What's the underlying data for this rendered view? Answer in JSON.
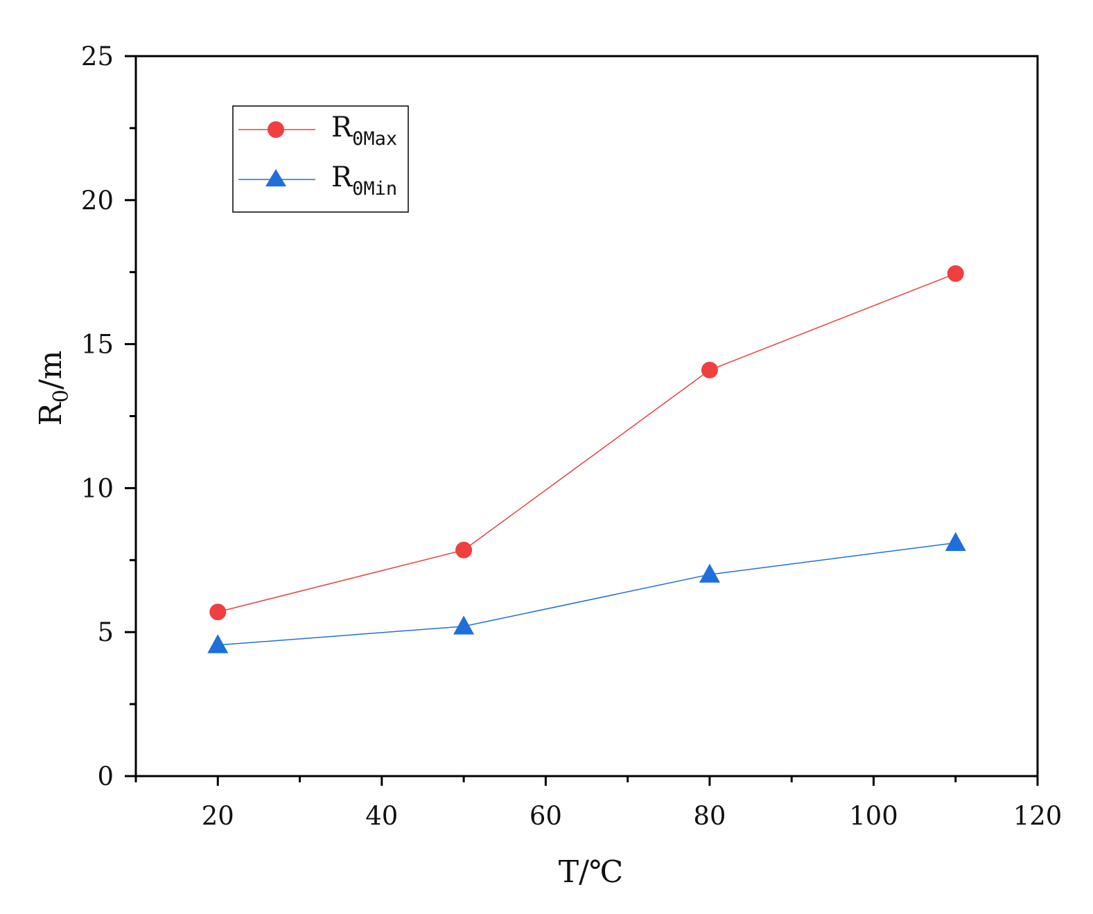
{
  "chart_data": {
    "type": "line",
    "xlabel": {
      "main": "T/℃"
    },
    "ylabel": {
      "main": "R",
      "sub": "0",
      "suffix": "/m"
    },
    "xlim": [
      10,
      120
    ],
    "ylim": [
      0,
      25
    ],
    "x_ticks": [
      20,
      40,
      60,
      80,
      100,
      120
    ],
    "x_minor_ticks": [
      10,
      30,
      50,
      70,
      90,
      110
    ],
    "y_ticks": [
      0,
      5,
      10,
      15,
      20,
      25
    ],
    "y_minor_ticks": [
      2.5,
      7.5,
      12.5,
      17.5,
      22.5
    ],
    "grid": false,
    "legend_position": "top-left",
    "series": [
      {
        "name": {
          "main": "R",
          "sub": "0Max"
        },
        "marker": "circle",
        "color": "#ef3f3f",
        "x": [
          20,
          50,
          80,
          110
        ],
        "y": [
          5.7,
          7.85,
          14.1,
          17.45
        ]
      },
      {
        "name": {
          "main": "R",
          "sub": "0Min"
        },
        "marker": "triangle",
        "color": "#1f6fdb",
        "x": [
          20,
          50,
          80,
          110
        ],
        "y": [
          4.55,
          5.2,
          7.0,
          8.1
        ]
      }
    ]
  }
}
